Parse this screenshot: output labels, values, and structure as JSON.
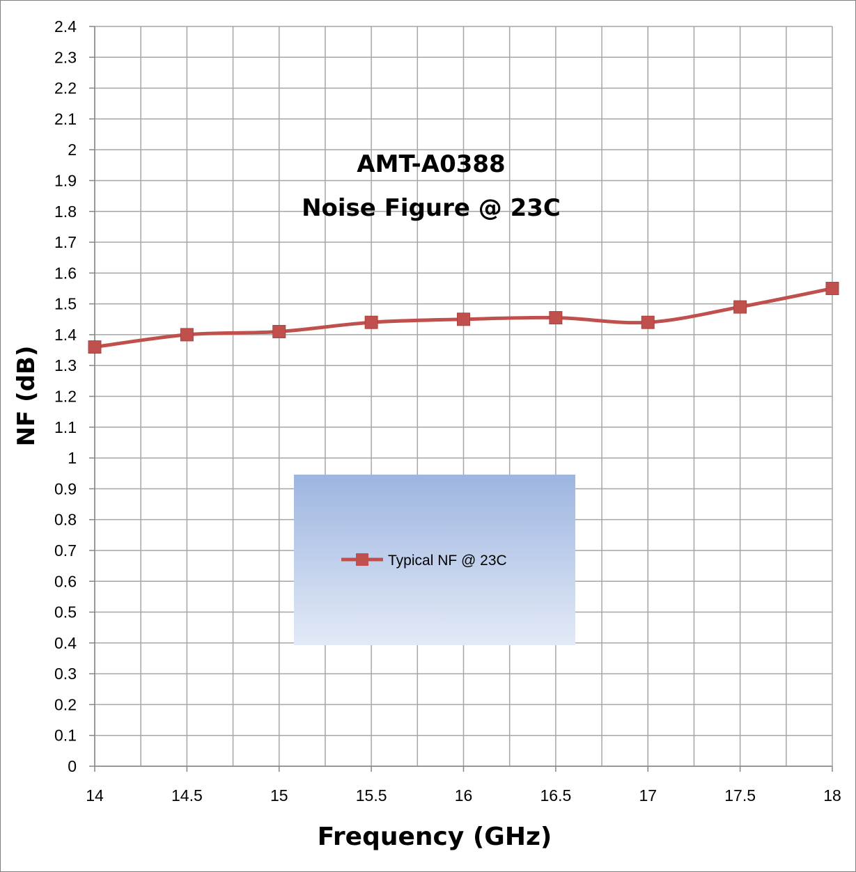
{
  "chart_data": {
    "type": "line",
    "title_lines": [
      "AMT-A0388",
      "Noise Figure @ 23C"
    ],
    "xlabel": "Frequency (GHz)",
    "ylabel": "NF  (dB)",
    "xlim": [
      14,
      18
    ],
    "ylim": [
      0,
      2.4
    ],
    "x_ticks": [
      "14",
      "14.5",
      "15",
      "15.5",
      "16",
      "16.5",
      "17",
      "17.5",
      "18"
    ],
    "y_ticks": [
      "0",
      "0.1",
      "0.2",
      "0.3",
      "0.4",
      "0.5",
      "0.6",
      "0.7",
      "0.8",
      "0.9",
      "1",
      "1.1",
      "1.2",
      "1.3",
      "1.4",
      "1.5",
      "1.6",
      "1.7",
      "1.8",
      "1.9",
      "2",
      "2.1",
      "2.2",
      "2.3",
      "2.4"
    ],
    "grid": true,
    "legend_position": "center",
    "series": [
      {
        "name": "Typical NF @ 23C",
        "color": "#c0504d",
        "marker": "square",
        "smooth": true,
        "x": [
          14,
          14.5,
          15,
          15.5,
          16,
          16.5,
          17,
          17.5,
          18
        ],
        "y": [
          1.36,
          1.4,
          1.41,
          1.44,
          1.45,
          1.455,
          1.44,
          1.49,
          1.55
        ]
      }
    ]
  },
  "colors": {
    "grid": "#a6a6a6",
    "axis": "#868686",
    "legend_top": "#9db5e0",
    "legend_bottom": "#e3eaf7"
  }
}
